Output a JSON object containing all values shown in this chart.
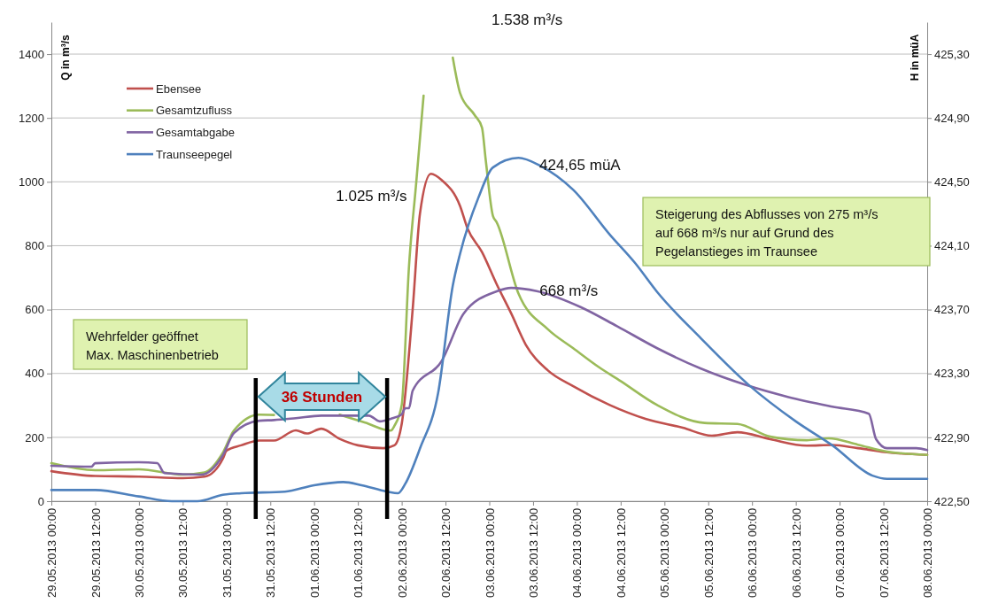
{
  "chart_data": {
    "type": "line",
    "ylabel": "Q in m³/s",
    "y2label": "H in müA",
    "xlim": [
      "2013-05-29T00:00",
      "2013-06-08T00:00"
    ],
    "xticks": [
      {
        "value": "2013-05-29T00:00",
        "label": "29.05.2013 00:00"
      },
      {
        "value": "2013-05-29T12:00",
        "label": "29.05.2013 12:00"
      },
      {
        "value": "2013-05-30T00:00",
        "label": "30.05.2013 00:00"
      },
      {
        "value": "2013-05-30T12:00",
        "label": "30.05.2013 12:00"
      },
      {
        "value": "2013-05-31T00:00",
        "label": "31.05.2013 00:00"
      },
      {
        "value": "2013-05-31T12:00",
        "label": "31.05.2013 12:00"
      },
      {
        "value": "2013-06-01T00:00",
        "label": "01.06.2013 00:00"
      },
      {
        "value": "2013-06-01T12:00",
        "label": "01.06.2013 12:00"
      },
      {
        "value": "2013-06-02T00:00",
        "label": "02.06.2013 00:00"
      },
      {
        "value": "2013-06-02T12:00",
        "label": "02.06.2013 12:00"
      },
      {
        "value": "2013-06-03T00:00",
        "label": "03.06.2013 00:00"
      },
      {
        "value": "2013-06-03T12:00",
        "label": "03.06.2013 12:00"
      },
      {
        "value": "2013-06-04T00:00",
        "label": "04.06.2013 00:00"
      },
      {
        "value": "2013-06-04T12:00",
        "label": "04.06.2013 12:00"
      },
      {
        "value": "2013-06-05T00:00",
        "label": "05.06.2013 00:00"
      },
      {
        "value": "2013-06-05T12:00",
        "label": "05.06.2013 12:00"
      },
      {
        "value": "2013-06-06T00:00",
        "label": "06.06.2013 00:00"
      },
      {
        "value": "2013-06-06T12:00",
        "label": "06.06.2013 12:00"
      },
      {
        "value": "2013-06-07T00:00",
        "label": "07.06.2013 00:00"
      },
      {
        "value": "2013-06-07T12:00",
        "label": "07.06.2013 12:00"
      },
      {
        "value": "2013-06-08T00:00",
        "label": "08.06.2013 00:00"
      }
    ],
    "ylim": [
      0,
      1500
    ],
    "yticks": [
      0,
      200,
      400,
      600,
      800,
      1000,
      1200,
      1400
    ],
    "y2lim": [
      422.5,
      425.5
    ],
    "y2ticks": [
      {
        "value": 422.5,
        "label": "422,50"
      },
      {
        "value": 422.9,
        "label": "422,90"
      },
      {
        "value": 423.3,
        "label": "423,30"
      },
      {
        "value": 423.7,
        "label": "423,70"
      },
      {
        "value": 424.1,
        "label": "424,10"
      },
      {
        "value": 424.5,
        "label": "424,50"
      },
      {
        "value": 424.9,
        "label": "424,90"
      },
      {
        "value": 425.3,
        "label": "425,30"
      }
    ],
    "grid": "y",
    "legend": "top left",
    "series": [
      {
        "name": "Ebensee",
        "color": "#c0504d",
        "x": [
          "2013-05-29T00:00",
          "2013-05-29T12:00",
          "2013-05-30T00:00",
          "2013-05-30T12:00",
          "2013-05-30T18:00",
          "2013-05-30T23:00",
          "2013-05-31T00:00",
          "2013-05-31T04:00",
          "2013-05-31T09:00",
          "2013-05-31T13:00",
          "2013-05-31T19:00",
          "2013-05-31T22:00",
          "2013-06-01T02:00",
          "2013-06-01T07:00",
          "2013-06-01T12:00",
          "2013-06-01T19:00",
          "2013-06-01T22:00",
          "2013-06-02T00:00",
          "2013-06-02T03:00",
          "2013-06-02T05:00",
          "2013-06-02T08:00",
          "2013-06-02T11:00",
          "2013-06-02T16:00",
          "2013-06-02T18:00",
          "2013-06-02T22:00",
          "2013-06-03T02:00",
          "2013-06-03T06:00",
          "2013-06-03T10:00",
          "2013-06-03T16:00",
          "2013-06-03T23:00",
          "2013-06-04T09:00",
          "2013-06-04T19:00",
          "2013-06-05T05:00",
          "2013-06-05T13:00",
          "2013-06-05T20:00",
          "2013-06-06T05:00",
          "2013-06-06T15:00",
          "2013-06-06T22:00",
          "2013-06-07T05:00",
          "2013-06-07T14:00",
          "2013-06-08T00:00"
        ],
        "values": [
          94,
          79,
          77,
          72,
          77,
          133,
          158,
          175,
          190,
          190,
          222,
          212,
          227,
          195,
          175,
          166,
          175,
          242,
          600,
          900,
          1025,
          1005,
          924,
          855,
          780,
          680,
          588,
          490,
          410,
          360,
          301,
          257,
          230,
          205,
          216,
          194,
          174,
          176,
          166,
          152,
          145
        ]
      },
      {
        "name": "Gesamtzufluss",
        "color": "#9bbb59",
        "x": [
          "2013-05-29T00:00",
          "2013-05-29T12:00",
          "2013-05-30T00:00",
          "2013-05-30T12:00",
          "2013-05-30T18:00",
          "2013-05-30T23:00",
          "2013-05-31T02:00",
          "2013-05-31T09:00",
          "2013-05-31T13:00",
          "2013-05-31T19:00",
          "2013-06-01T02:00",
          "2013-06-01T07:00",
          "2013-06-01T14:00",
          "2013-06-01T21:00",
          "2013-06-01T22:00",
          "2013-06-02T00:00",
          "2013-06-02T02:00",
          "2013-06-02T04:00",
          "2013-06-02T06:00",
          "2013-06-02T08:00",
          "2013-06-02T11:00",
          "2013-06-02T14:00",
          "2013-06-02T16:00",
          "2013-06-02T20:00",
          "2013-06-02T22:00",
          "2013-06-02T23:00",
          "2013-06-03T01:00",
          "2013-06-03T02:00",
          "2013-06-03T08:00",
          "2013-06-03T16:00",
          "2013-06-03T23:00",
          "2013-06-04T06:00",
          "2013-06-04T12:00",
          "2013-06-04T22:00",
          "2013-06-05T11:00",
          "2013-06-05T20:00",
          "2013-06-06T05:00",
          "2013-06-06T15:00",
          "2013-06-06T21:00",
          "2013-06-07T05:00",
          "2013-06-07T13:00",
          "2013-06-08T00:00"
        ],
        "values": [
          119,
          97,
          100,
          83,
          90,
          152,
          221,
          271,
          270,
          null,
          null,
          271,
          246,
          221,
          236,
          301,
          736,
          1000,
          1270,
          null,
          null,
          1389,
          1278,
          1209,
          1170,
          1071,
          893,
          874,
          650,
          539,
          479,
          420,
          376,
          301,
          245,
          242,
          202,
          191,
          197,
          177,
          155,
          145
        ]
      },
      {
        "name": "Gesamtabgabe",
        "color": "#8064a2",
        "x": [
          "2013-05-29T00:00",
          "2013-05-29T11:00",
          "2013-05-29T12:00",
          "2013-05-30T00:00",
          "2013-05-30T05:00",
          "2013-05-30T07:00",
          "2013-05-30T17:00",
          "2013-05-30T23:00",
          "2013-05-31T02:00",
          "2013-05-31T09:00",
          "2013-05-31T13:00",
          "2013-05-31T19:00",
          "2013-06-01T02:00",
          "2013-06-01T15:00",
          "2013-06-01T18:00",
          "2013-06-01T21:00",
          "2013-06-02T00:00",
          "2013-06-02T01:00",
          "2013-06-02T02:00",
          "2013-06-02T03:00",
          "2013-06-02T11:00",
          "2013-06-02T17:00",
          "2013-06-03T02:00",
          "2013-06-03T06:00",
          "2013-06-03T13:00",
          "2013-06-04T01:00",
          "2013-06-04T11:00",
          "2013-06-04T22:00",
          "2013-06-05T10:00",
          "2013-06-05T22:00",
          "2013-06-06T10:00",
          "2013-06-06T22:00",
          "2013-06-07T08:00",
          "2013-06-07T10:00",
          "2013-06-07T13:00",
          "2013-06-07T21:00",
          "2013-06-08T00:00"
        ],
        "values": [
          111,
          108,
          119,
          122,
          119,
          88,
          83,
          144,
          213,
          252,
          254,
          260,
          268,
          268,
          250,
          258,
          272,
          291,
          291,
          346,
          440,
          588,
          657,
          668,
          658,
          608,
          548,
          479,
          415,
          365,
          326,
          296,
          274,
          194,
          166,
          166,
          160
        ]
      },
      {
        "name": "Traunseepegel",
        "color": "#4f81bd",
        "axis": "y2",
        "x": [
          "2013-05-29T00:00",
          "2013-05-29T12:00",
          "2013-05-30T00:00",
          "2013-05-30T09:00",
          "2013-05-30T16:00",
          "2013-05-30T23:00",
          "2013-05-31T04:00",
          "2013-05-31T16:00",
          "2013-06-01T00:00",
          "2013-06-01T08:00",
          "2013-06-01T13:00",
          "2013-06-01T20:00",
          "2013-06-01T23:00",
          "2013-06-02T01:00",
          "2013-06-02T05:00",
          "2013-06-02T10:00",
          "2013-06-02T14:00",
          "2013-06-02T16:00",
          "2013-06-02T21:00",
          "2013-06-03T01:00",
          "2013-06-03T08:00",
          "2013-06-03T14:00",
          "2013-06-03T23:00",
          "2013-06-04T09:00",
          "2013-06-04T16:00",
          "2013-06-04T22:00",
          "2013-06-05T10:00",
          "2013-06-05T23:00",
          "2013-06-06T12:00",
          "2013-06-06T22:00",
          "2013-06-07T09:00",
          "2013-06-07T13:00",
          "2013-06-08T00:00"
        ],
        "values": [
          422.57,
          422.57,
          422.53,
          422.5,
          422.5,
          422.54,
          422.55,
          422.56,
          422.6,
          422.62,
          422.6,
          422.56,
          422.55,
          422.61,
          422.83,
          423.18,
          423.85,
          424.05,
          424.4,
          424.59,
          424.65,
          424.6,
          424.45,
          424.17,
          423.99,
          423.81,
          423.52,
          423.23,
          423.0,
          422.85,
          422.66,
          422.64,
          422.64
        ]
      }
    ],
    "ref_lines": [
      {
        "axis": "x",
        "value": "2013-05-31T08:00",
        "color": "#000000"
      },
      {
        "axis": "x",
        "value": "2013-06-01T20:00",
        "color": "#000000"
      }
    ],
    "annotations": [
      "1.538 m³/s",
      {
        "text": "1.025 m³/s",
        "x": "2013-06-02T08:00",
        "y": 1025
      },
      "424,65 müA",
      {
        "text": "668 m³/s",
        "x": "2013-06-03T06:00",
        "y": 668
      },
      "Wehrfelder geöffnet\nMax. Maschinenbetrieb",
      "Steigerung des Abflusses von 275 m³/s\nauf 668 m³/s nur auf Grund des\nPegelanstieges im Traunsee",
      "36 Stunden"
    ]
  }
}
